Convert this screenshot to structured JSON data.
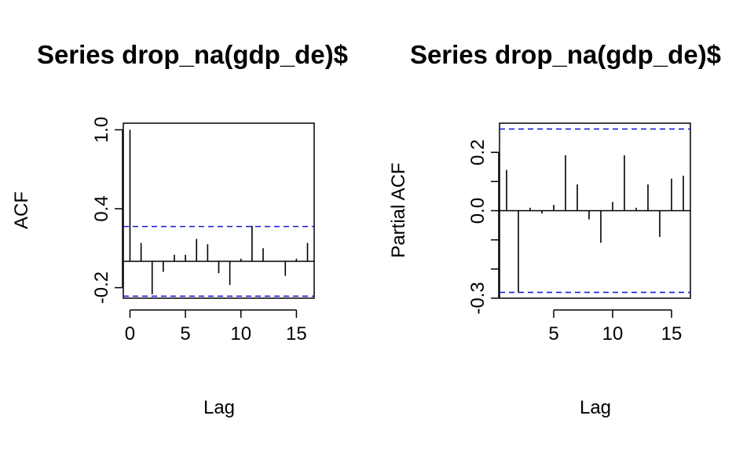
{
  "chart_data": [
    {
      "type": "bar",
      "title": "Series  drop_na(gdp_de)$",
      "xlabel": "Lag",
      "ylabel": "ACF",
      "xlim": [
        -0.6,
        16.6
      ],
      "ylim": [
        -0.28,
        1.05
      ],
      "xticks": [
        0,
        5,
        10,
        15
      ],
      "xtick_labels": [
        "0",
        "5",
        "10",
        "15"
      ],
      "yticks": [
        -0.2,
        0.4,
        1.0
      ],
      "ytick_labels": [
        "-0.2",
        "0.4",
        "1.0"
      ],
      "ci": [
        0.265,
        -0.265
      ],
      "lags": [
        0,
        1,
        2,
        3,
        4,
        5,
        6,
        7,
        8,
        9,
        10,
        11,
        12,
        13,
        14,
        15,
        16
      ],
      "values": [
        1.0,
        0.14,
        -0.25,
        -0.08,
        0.05,
        0.05,
        0.17,
        0.13,
        -0.09,
        -0.18,
        0.02,
        0.27,
        0.1,
        0.0,
        -0.11,
        0.02,
        0.14
      ],
      "grid": false
    },
    {
      "type": "bar",
      "title": "Series  drop_na(gdp_de)$",
      "xlabel": "Lag",
      "ylabel": "Partial ACF",
      "xlim": [
        0.4,
        16.6
      ],
      "ylim": [
        -0.3,
        0.3
      ],
      "xticks": [
        5,
        10,
        15
      ],
      "xtick_labels": [
        "5",
        "10",
        "15"
      ],
      "yticks": [
        -0.3,
        -0.2,
        -0.1,
        0.0,
        0.1,
        0.2
      ],
      "ytick_labels": [
        "-0.3",
        "",
        "",
        "0.0",
        "",
        "0.2"
      ],
      "ci": [
        0.28,
        -0.28
      ],
      "lags": [
        1,
        2,
        3,
        4,
        5,
        6,
        7,
        8,
        9,
        10,
        11,
        12,
        13,
        14,
        15,
        16
      ],
      "values": [
        0.14,
        -0.28,
        0.01,
        -0.01,
        0.02,
        0.19,
        0.09,
        -0.03,
        -0.11,
        0.03,
        0.19,
        0.01,
        0.09,
        -0.09,
        0.11,
        0.12
      ],
      "grid": false
    }
  ]
}
